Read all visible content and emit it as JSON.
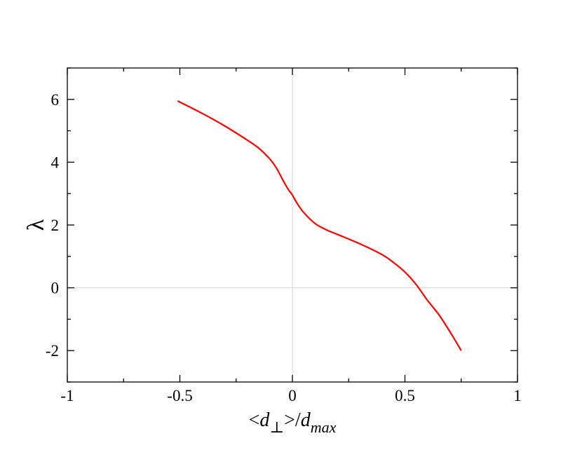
{
  "chart_data": {
    "type": "line",
    "title": "",
    "xlabel": "<d⊥>/dmax",
    "xlabel_parts": {
      "open": "<",
      "d": "d",
      "perp": "⊥",
      "close": ">/",
      "d2": "d",
      "sub": "max"
    },
    "ylabel": "λ",
    "xlim": [
      -1,
      1
    ],
    "ylim": [
      -3,
      7
    ],
    "x_ticks": [
      -1,
      -0.5,
      0,
      0.5,
      1
    ],
    "x_tick_labels": [
      "-1",
      "-0.5",
      "0",
      "0.5",
      "1"
    ],
    "y_ticks": [
      -2,
      0,
      2,
      4,
      6
    ],
    "y_tick_labels": [
      "-2",
      "0",
      "2",
      "4",
      "6"
    ],
    "x_minor_step": 0.25,
    "y_minor_step": 1,
    "zero_lines": true,
    "grid": false,
    "legend": "none",
    "series": [
      {
        "color": "#ff0000",
        "x": [
          -0.51,
          -0.4,
          -0.3,
          -0.2,
          -0.15,
          -0.1,
          -0.07,
          -0.04,
          -0.02,
          0.0,
          0.02,
          0.05,
          0.1,
          0.15,
          0.2,
          0.3,
          0.4,
          0.45,
          0.5,
          0.55,
          0.6,
          0.65,
          0.7,
          0.75
        ],
        "y": [
          5.95,
          5.55,
          5.15,
          4.7,
          4.45,
          4.1,
          3.8,
          3.4,
          3.15,
          2.95,
          2.7,
          2.4,
          2.05,
          1.85,
          1.7,
          1.4,
          1.05,
          0.8,
          0.5,
          0.1,
          -0.4,
          -0.85,
          -1.4,
          -2.0
        ]
      }
    ]
  }
}
